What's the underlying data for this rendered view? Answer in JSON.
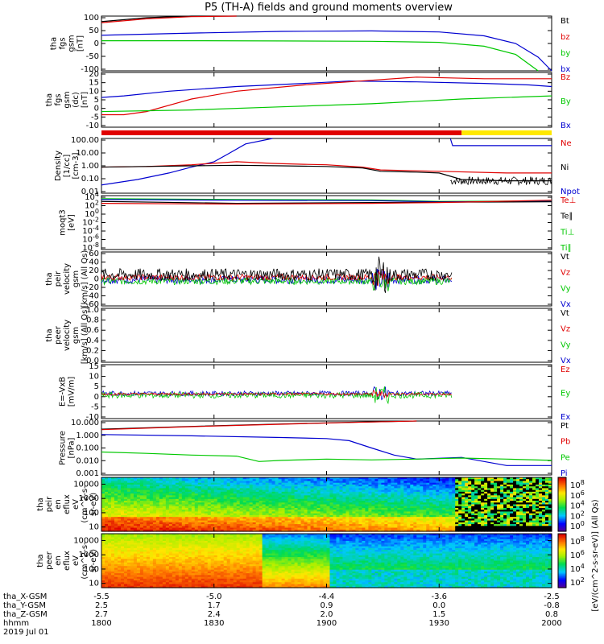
{
  "title": "P5 (TH-A) fields and ground moments overview",
  "colors": {
    "black": "#000000",
    "red": "#e00000",
    "green": "#00c800",
    "blue": "#0000d0",
    "yellow": "#ffe800"
  },
  "x_ticks": [
    "1800",
    "1830",
    "1900",
    "1930",
    "2000"
  ],
  "footer": {
    "rows": [
      {
        "label": "tha_X-GSM",
        "values": [
          "-5.5",
          "-5.0",
          "-4.4",
          "-3.6",
          "-2.5"
        ]
      },
      {
        "label": "tha_Y-GSM",
        "values": [
          "2.5",
          "1.7",
          "0.9",
          "0.0",
          "-0.8"
        ]
      },
      {
        "label": "tha_Z-GSM",
        "values": [
          "2.7",
          "2.4",
          "2.0",
          "1.5",
          "0.8"
        ]
      },
      {
        "label": "hhmm",
        "values": [
          "1800",
          "1830",
          "1900",
          "1930",
          "2000"
        ]
      }
    ],
    "date": "2019 Jul 01"
  },
  "colorbar_label": "[eV/(cm^2-s-sr-eV)] (All Qs)",
  "chart_data": [
    {
      "type": "line",
      "ylabel": [
        "tha",
        "fgs",
        "gsm",
        "[nT]"
      ],
      "ticks": [
        "100",
        "50",
        "0",
        "-50",
        "-100"
      ],
      "ylim": [
        -100,
        100
      ],
      "legend": [
        {
          "label": "Bt",
          "color": "black"
        },
        {
          "label": "bz",
          "color": "red"
        },
        {
          "label": "by",
          "color": "green"
        },
        {
          "label": "bx",
          "color": "blue"
        }
      ],
      "series": [
        {
          "color": "black",
          "x": [
            0,
            0.1,
            0.2,
            0.3
          ],
          "y": [
            80,
            94,
            100,
            106
          ]
        },
        {
          "color": "red",
          "x": [
            0,
            0.1,
            0.2,
            0.3
          ],
          "y": [
            76,
            90,
            98,
            104
          ]
        },
        {
          "color": "green",
          "x": [
            0,
            0.2,
            0.4,
            0.6,
            0.75,
            0.85,
            0.92,
            0.97
          ],
          "y": [
            10,
            10,
            9,
            8,
            4,
            -10,
            -40,
            -100
          ]
        },
        {
          "color": "blue",
          "x": [
            0,
            0.2,
            0.4,
            0.6,
            0.75,
            0.85,
            0.92,
            0.97,
            1.0
          ],
          "y": [
            30,
            38,
            44,
            46,
            42,
            28,
            0,
            -50,
            -100
          ]
        }
      ]
    },
    {
      "type": "line",
      "ylabel": [
        "tha",
        "fgs",
        "gsm",
        "(dc)",
        "[nT]"
      ],
      "ticks": [
        "20",
        "15",
        "10",
        "5",
        "0",
        "-5",
        "-10"
      ],
      "ylim": [
        -13,
        22
      ],
      "legend": [
        {
          "label": "Bz",
          "color": "red"
        },
        {
          "label": "By",
          "color": "green"
        },
        {
          "label": "Bx",
          "color": "blue"
        }
      ],
      "series": [
        {
          "color": "blue",
          "x": [
            0,
            0.05,
            0.15,
            0.3,
            0.45,
            0.55,
            0.7,
            0.85,
            0.95,
            1.0
          ],
          "y": [
            6,
            7,
            10,
            13,
            15,
            16.5,
            16,
            15,
            14,
            13
          ]
        },
        {
          "color": "red",
          "x": [
            0,
            0.05,
            0.1,
            0.2,
            0.3,
            0.45,
            0.6,
            0.7,
            0.85,
            1.0
          ],
          "y": [
            -5,
            -5,
            -3,
            5,
            10,
            14,
            17,
            19,
            18,
            18
          ]
        },
        {
          "color": "green",
          "x": [
            0,
            0.2,
            0.4,
            0.6,
            0.8,
            1.0
          ],
          "y": [
            -3,
            -2,
            0,
            2,
            5,
            7
          ]
        }
      ]
    },
    {
      "type": "line",
      "ylabel": [
        "Density",
        "[1/cc]",
        "[cm-3]"
      ],
      "log": true,
      "ticks": [
        "100.00",
        "10.00",
        "1.00",
        "0.10",
        "0.01"
      ],
      "ylim": [
        0.01,
        100
      ],
      "legend": [
        {
          "label": "Ne",
          "color": "red"
        },
        {
          "label": "Ni",
          "color": "black"
        },
        {
          "label": "Npot",
          "color": "blue"
        }
      ],
      "series": [
        {
          "color": "blue",
          "x": [
            0,
            0.08,
            0.15,
            0.2,
            0.25,
            0.28,
            0.32,
            0.38,
            0.39,
            0.45,
            0.6,
            0.7
          ],
          "y": [
            0.04,
            0.1,
            0.3,
            0.8,
            2,
            7,
            40,
            100,
            0,
            0,
            0,
            0
          ]
        },
        {
          "color": "blue",
          "x": [
            0.775,
            0.78,
            0.85,
            1.0
          ],
          "y": [
            100,
            30,
            30,
            30
          ]
        },
        {
          "color": "red",
          "x": [
            0,
            0.1,
            0.2,
            0.3,
            0.38,
            0.45,
            0.5,
            0.58,
            0.62,
            0.75,
            0.9,
            1.0
          ],
          "y": [
            0.8,
            0.9,
            1.2,
            2,
            1.5,
            1.3,
            1.2,
            0.8,
            0.5,
            0.4,
            0.3,
            0.3
          ]
        },
        {
          "color": "black",
          "x": [
            0,
            0.1,
            0.2,
            0.3,
            0.4,
            0.5,
            0.58,
            0.62,
            0.7,
            0.75,
            0.8,
            0.9,
            1.0
          ],
          "y": [
            0.8,
            0.9,
            1.0,
            1.1,
            1.0,
            0.9,
            0.7,
            0.4,
            0.35,
            0.3,
            0.1,
            0.08,
            0.08
          ]
        }
      ]
    },
    {
      "type": "line",
      "ylabel": [
        "moqt3",
        "[eV]"
      ],
      "log": true,
      "ticks": [
        "10^4",
        "10^2",
        "10^0",
        "10^-2",
        "10^-4",
        "10^-6",
        "10^-8"
      ],
      "ylim": [
        -9,
        5
      ],
      "legend": [
        {
          "label": "Te⊥",
          "color": "red"
        },
        {
          "label": "Te∥",
          "color": "black"
        },
        {
          "label": "Ti⊥",
          "color": "green"
        },
        {
          "label": "Ti∥",
          "color": "green"
        }
      ],
      "series": [
        {
          "color": "green",
          "x": [
            0,
            0.3,
            0.6,
            0.75,
            1.0
          ],
          "y": [
            4.2,
            4.0,
            3.9,
            3.5,
            3.6
          ]
        },
        {
          "color": "blue",
          "x": [
            0,
            0.3,
            0.6,
            0.75,
            1.0
          ],
          "y": [
            4.0,
            3.8,
            3.7,
            3.4,
            3.5
          ]
        },
        {
          "color": "black",
          "x": [
            0,
            0.3,
            0.6,
            0.75,
            1.0
          ],
          "y": [
            3.5,
            3.0,
            3.2,
            3.3,
            3.4
          ]
        },
        {
          "color": "red",
          "x": [
            0,
            0.3,
            0.6,
            0.75,
            1.0
          ],
          "y": [
            3.0,
            2.8,
            3.0,
            3.2,
            3.8
          ]
        }
      ]
    },
    {
      "type": "line",
      "ylabel": [
        "tha",
        "peir",
        "velocity",
        "gsm",
        "[km/s] (All Qs)"
      ],
      "ticks": [
        "60",
        "40",
        "20",
        "0",
        "-20",
        "-40",
        "-60"
      ],
      "ylim": [
        -62,
        62
      ],
      "legend": [
        {
          "label": "Vt",
          "color": "black"
        },
        {
          "label": "Vz",
          "color": "red"
        },
        {
          "label": "Vy",
          "color": "green"
        },
        {
          "label": "Vx",
          "color": "blue"
        }
      ],
      "series": []
    },
    {
      "type": "line",
      "ylabel": [
        "tha",
        "peer",
        "velocity",
        "gsm",
        "[km/s] (All Qs)"
      ],
      "ticks": [
        "1.0",
        "0.8",
        "0.6",
        "0.4",
        "0.2",
        "0.0"
      ],
      "ylim": [
        0,
        1
      ],
      "legend": [
        {
          "label": "Vt",
          "color": "black"
        },
        {
          "label": "Vz",
          "color": "red"
        },
        {
          "label": "Vy",
          "color": "green"
        },
        {
          "label": "Vx",
          "color": "blue"
        }
      ],
      "series": []
    },
    {
      "type": "line",
      "ylabel": [
        "E=-VxB",
        "[mV/m]"
      ],
      "ticks": [
        "15",
        "10",
        "5",
        "0",
        "-5",
        "-10"
      ],
      "ylim": [
        -12,
        15
      ],
      "legend": [
        {
          "label": "Ez",
          "color": "red"
        },
        {
          "label": "Ey",
          "color": "green"
        },
        {
          "label": "Ex",
          "color": "blue"
        }
      ],
      "series": []
    },
    {
      "type": "line",
      "ylabel": [
        "Pressure",
        "[nPa]"
      ],
      "log": true,
      "ticks": [
        "10.000",
        "1.000",
        "0.100",
        "0.010",
        "0.001"
      ],
      "ylim": [
        0.001,
        10
      ],
      "legend": [
        {
          "label": "Pt",
          "color": "black"
        },
        {
          "label": "Pb",
          "color": "red"
        },
        {
          "label": "Pe",
          "color": "green"
        },
        {
          "label": "Pi",
          "color": "blue"
        }
      ],
      "series": [
        {
          "color": "black",
          "x": [
            0,
            0.2,
            0.4,
            0.55,
            0.7
          ],
          "y": [
            2.5,
            4,
            6,
            8,
            11
          ]
        },
        {
          "color": "red",
          "x": [
            0,
            0.2,
            0.4,
            0.55,
            0.7
          ],
          "y": [
            2.3,
            3.8,
            5.8,
            7.8,
            10.5
          ]
        },
        {
          "color": "blue",
          "x": [
            0,
            0.2,
            0.4,
            0.5,
            0.55,
            0.6,
            0.65,
            0.7,
            0.8,
            0.85,
            0.9,
            1.0
          ],
          "y": [
            1.0,
            0.8,
            0.6,
            0.5,
            0.35,
            0.1,
            0.03,
            0.015,
            0.02,
            0.01,
            0.005,
            0.005
          ]
        },
        {
          "color": "green",
          "x": [
            0,
            0.1,
            0.2,
            0.3,
            0.35,
            0.4,
            0.5,
            0.6,
            0.7,
            0.8,
            0.9,
            1.0
          ],
          "y": [
            0.05,
            0.04,
            0.03,
            0.025,
            0.01,
            0.012,
            0.015,
            0.013,
            0.015,
            0.018,
            0.015,
            0.012
          ]
        }
      ]
    },
    {
      "type": "heatmap",
      "ylabel": [
        "tha",
        "peir",
        "en",
        "eflux",
        "eV",
        "(cm^2-s-",
        "sr-eV)"
      ],
      "log": true,
      "ticks": [
        "10000",
        "1000",
        "100",
        "10"
      ],
      "ylim": [
        5,
        30000
      ]
    },
    {
      "type": "heatmap",
      "ylabel": [
        "tha",
        "peer",
        "en",
        "eflux",
        "eV",
        "(cm^2-s-",
        "sr-eV)"
      ],
      "log": true,
      "ticks": [
        "10000",
        "1000",
        "100",
        "10"
      ],
      "ylim": [
        5,
        30000
      ]
    }
  ],
  "colorbars": [
    {
      "ticks": [
        "10^8",
        "10^6",
        "10^4",
        "10^2",
        "10^0"
      ]
    },
    {
      "ticks": [
        "10^8",
        "10^6",
        "10^4",
        "10^2"
      ]
    }
  ]
}
